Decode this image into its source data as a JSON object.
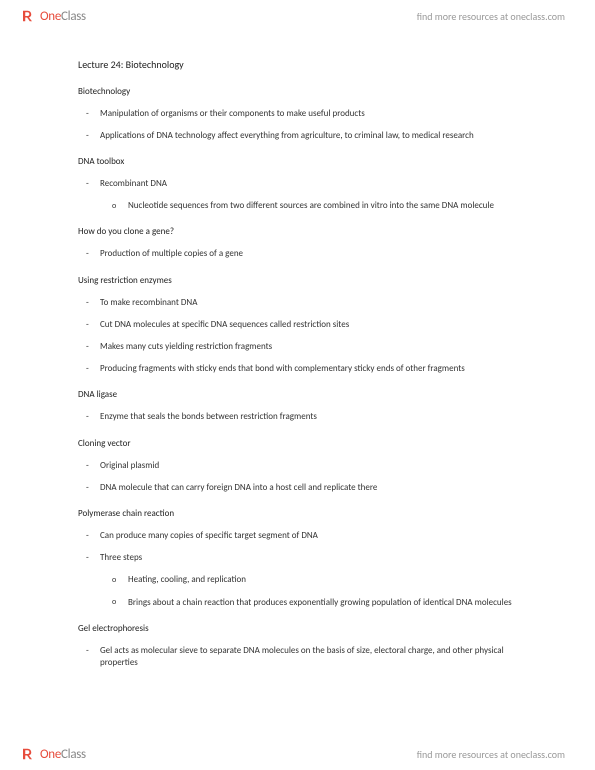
{
  "brand": {
    "one": "One",
    "class": "Class",
    "tagline": "find more resources at oneclass.com"
  },
  "doc": {
    "title": "Lecture 24: Biotechnology",
    "sections": [
      {
        "heading": "Biotechnology",
        "bullets": [
          {
            "text": "Manipulation of organisms or their components to make useful products"
          },
          {
            "text": "Applications of DNA technology affect everything from agriculture, to criminal law, to medical research"
          }
        ]
      },
      {
        "heading": "DNA toolbox",
        "bullets": [
          {
            "text": "Recombinant DNA",
            "sub": [
              {
                "text": "Nucleotide sequences from two different sources are combined in vitro into the same DNA molecule"
              }
            ]
          }
        ]
      },
      {
        "heading": "How do you clone a gene?",
        "bullets": [
          {
            "text": "Production of multiple copies of a gene"
          }
        ]
      },
      {
        "heading": "Using restriction enzymes",
        "bullets": [
          {
            "text": "To make recombinant DNA"
          },
          {
            "text": "Cut DNA molecules at specific DNA sequences called restriction sites"
          },
          {
            "text": "Makes many cuts yielding restriction fragments"
          },
          {
            "text": "Producing fragments with sticky ends that bond with complementary sticky ends of other fragments"
          }
        ]
      },
      {
        "heading": "DNA ligase",
        "bullets": [
          {
            "text": "Enzyme that seals the bonds between restriction fragments"
          }
        ]
      },
      {
        "heading": "Cloning vector",
        "bullets": [
          {
            "text": "Original plasmid"
          },
          {
            "text": "DNA molecule that can carry foreign DNA into a host cell and replicate there"
          }
        ]
      },
      {
        "heading": "Polymerase chain reaction",
        "bullets": [
          {
            "text": "Can produce many copies of specific target segment of DNA"
          },
          {
            "text": "Three steps",
            "sub": [
              {
                "text": "Heating, cooling, and replication"
              },
              {
                "text": "Brings about a chain reaction that produces exponentially growing population of identical DNA molecules"
              }
            ]
          }
        ]
      },
      {
        "heading": "Gel electrophoresis",
        "bullets": [
          {
            "text": "Gel acts as molecular sieve to separate DNA molecules on the basis of size, electoral charge, and other physical properties"
          }
        ]
      }
    ]
  },
  "colors": {
    "accent": "#e74c3c",
    "text": "#333333",
    "muted": "#888888",
    "bg": "#ffffff"
  }
}
